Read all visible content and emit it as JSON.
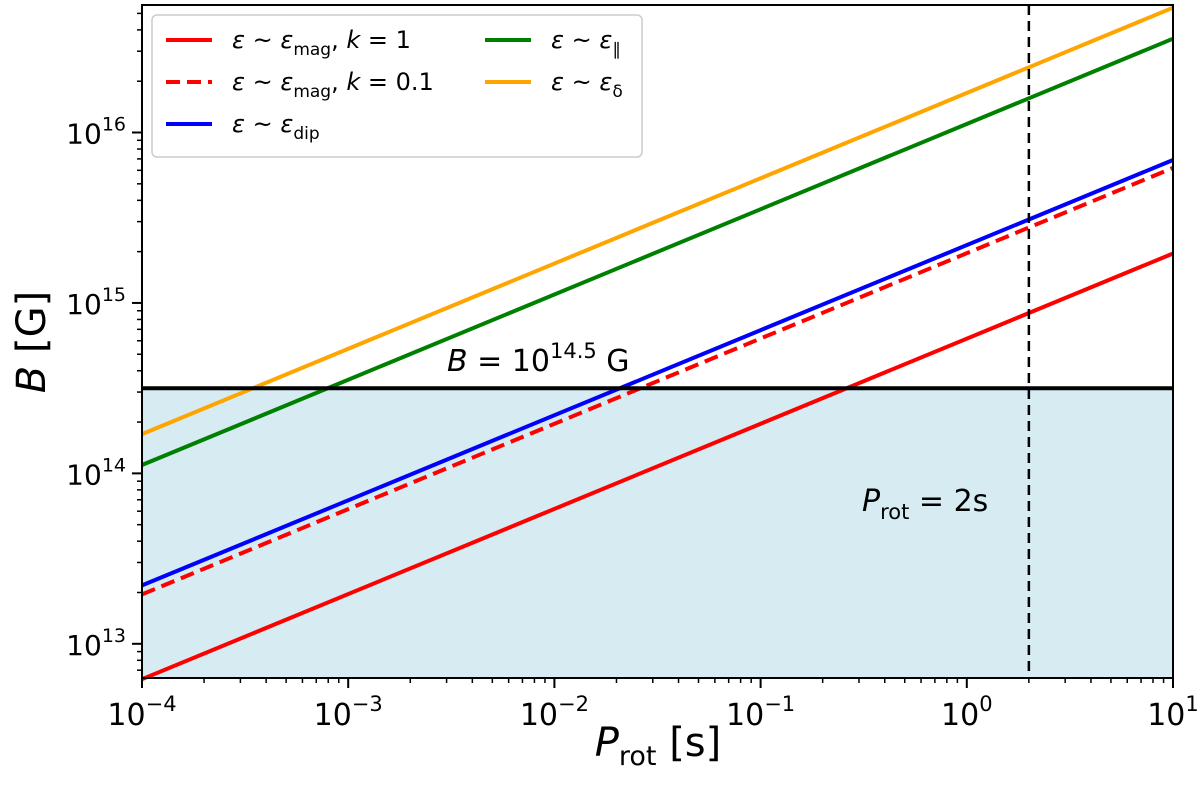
{
  "chart_data": {
    "type": "line",
    "xscale": "log",
    "yscale": "log",
    "xlim": [
      0.0001,
      10
    ],
    "ylim": [
      6300000000000.0,
      5.6e+16
    ],
    "xlabel": "P_rot [s]",
    "ylabel": "B [G]",
    "xticks": [
      {
        "value": 0.0001,
        "base": "10",
        "exp": "−4"
      },
      {
        "value": 0.001,
        "base": "10",
        "exp": "−3"
      },
      {
        "value": 0.01,
        "base": "10",
        "exp": "−2"
      },
      {
        "value": 0.1,
        "base": "10",
        "exp": "−1"
      },
      {
        "value": 1,
        "base": "10",
        "exp": "0"
      },
      {
        "value": 10,
        "base": "10",
        "exp": "1"
      }
    ],
    "yticks": [
      {
        "value": 10000000000000.0,
        "base": "10",
        "exp": "13"
      },
      {
        "value": 100000000000000.0,
        "base": "10",
        "exp": "14"
      },
      {
        "value": 1000000000000000.0,
        "base": "10",
        "exp": "15"
      },
      {
        "value": 1e+16,
        "base": "10",
        "exp": "16"
      }
    ],
    "series": [
      {
        "name": "ε ~ ε_mag, k = 1",
        "color": "#ff0000",
        "dash": "solid",
        "x": [
          0.0001,
          10
        ],
        "y": [
          6200000000000.0,
          1950000000000000.0
        ]
      },
      {
        "name": "ε ~ ε_mag, k = 0.1",
        "color": "#ff0000",
        "dash": "dashed",
        "x": [
          0.0001,
          10
        ],
        "y": [
          19500000000000.0,
          6200000000000000.0
        ]
      },
      {
        "name": "ε ~ ε_dip",
        "color": "#0000ff",
        "dash": "solid",
        "x": [
          0.0001,
          10
        ],
        "y": [
          22000000000000.0,
          6900000000000000.0
        ]
      },
      {
        "name": "ε ~ ε_∥",
        "color": "#008000",
        "dash": "solid",
        "x": [
          0.0001,
          10
        ],
        "y": [
          112000000000000.0,
          3.55e+16
        ]
      },
      {
        "name": "ε ~ ε_δ",
        "color": "#ffa500",
        "dash": "solid",
        "x": [
          0.0001,
          10
        ],
        "y": [
          170000000000000.0,
          5.4e+16
        ]
      }
    ],
    "legend": {
      "position": "top-left",
      "entries": [
        {
          "series": 0,
          "prefix": "ε ~ ε",
          "sub": "mag",
          "suffix": ",  k = 1"
        },
        {
          "series": 1,
          "prefix": "ε ~ ε",
          "sub": "mag",
          "suffix": ",  k = 0.1"
        },
        {
          "series": 2,
          "prefix": "ε ~ ε",
          "sub": "dip",
          "suffix": ""
        },
        {
          "series": 3,
          "prefix": "ε ~ ε",
          "sub": "∥",
          "suffix": ""
        },
        {
          "series": 4,
          "prefix": "ε ~ ε",
          "sub": "δ",
          "suffix": ""
        }
      ]
    },
    "threshold": {
      "value": 316000000000000.0,
      "label_prefix": "B = 10",
      "label_exp": "14.5",
      "label_suffix": " G",
      "fill_color": "#add8e6"
    },
    "vline": {
      "value": 2,
      "label_base": "P",
      "label_sub": "rot",
      "label_suffix": " = 2s"
    },
    "annotations": []
  }
}
